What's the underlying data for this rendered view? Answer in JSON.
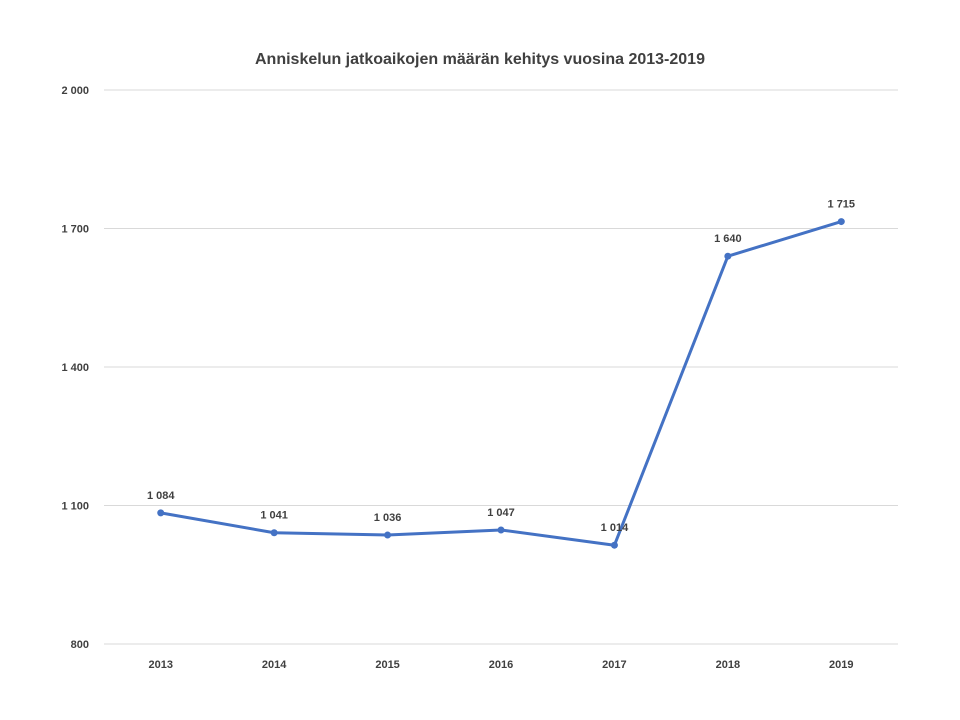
{
  "chart_data": {
    "type": "line",
    "title": "Anniskelun jatkoaikojen määrän kehitys vuosina 2013-2019",
    "xlabel": "",
    "ylabel": "",
    "categories": [
      "2013",
      "2014",
      "2015",
      "2016",
      "2017",
      "2018",
      "2019"
    ],
    "series": [
      {
        "values": [
          1084,
          1041,
          1036,
          1047,
          1014,
          1640,
          1715
        ],
        "color": "#4472c4"
      }
    ],
    "data_labels": [
      "1 084",
      "1 041",
      "1 036",
      "1 047",
      "1 014",
      "1 640",
      "1 715"
    ],
    "ylim": [
      800,
      2000
    ],
    "y_ticks": [
      800,
      1100,
      1400,
      1700,
      2000
    ],
    "y_tick_labels": [
      "800",
      "1 100",
      "1 400",
      "1 700",
      "2 000"
    ],
    "grid": true,
    "legend": "none"
  }
}
